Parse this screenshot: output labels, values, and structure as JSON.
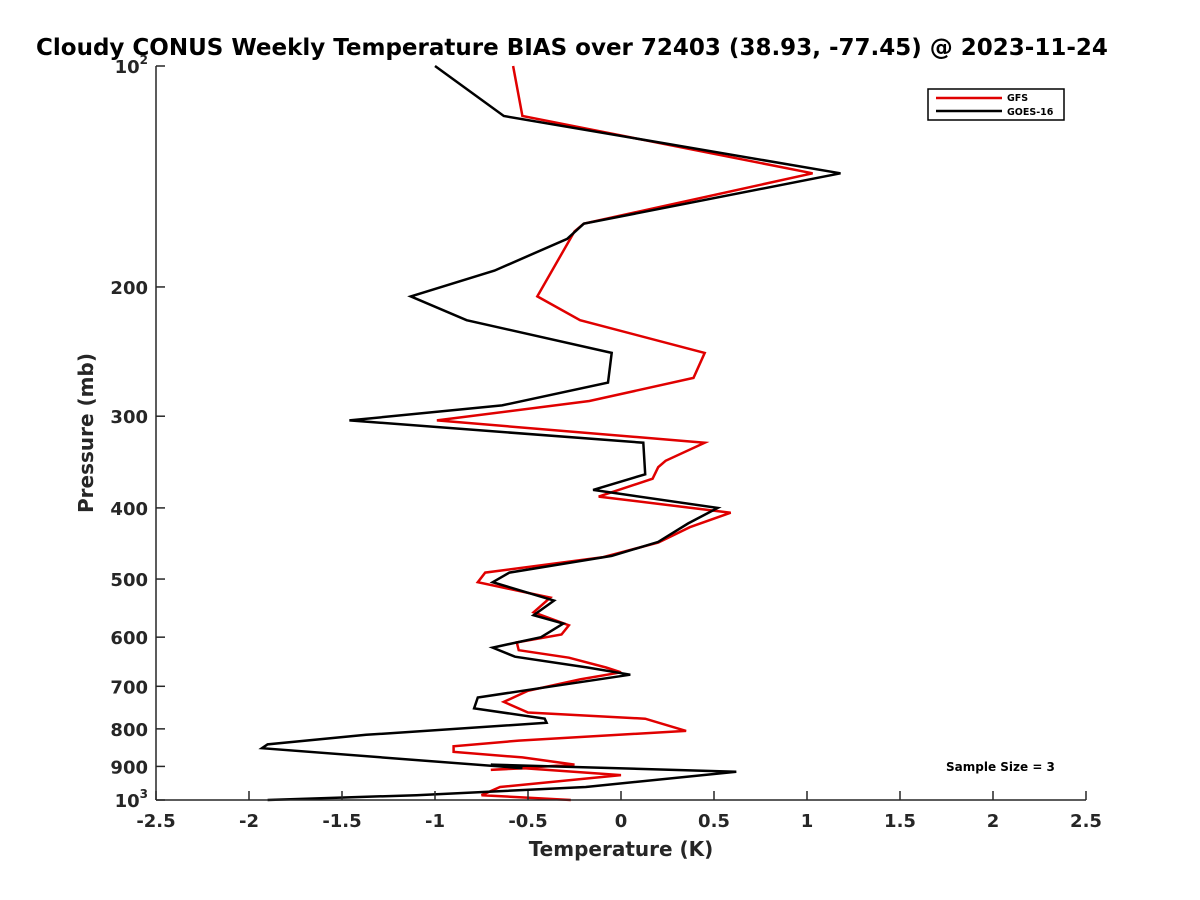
{
  "chart_data": {
    "type": "line",
    "title": "Cloudy CONUS Weekly Temperature BIAS over 72403 (38.93, -77.45) @ 2023-11-24",
    "xlabel": "Temperature (K)",
    "ylabel": "Pressure (mb)",
    "xlim": [
      -2.5,
      2.5
    ],
    "ylim": [
      100,
      1000
    ],
    "y_scale": "log",
    "y_reversed": true,
    "x_ticks": [
      {
        "value": -2.5,
        "label": "-2.5"
      },
      {
        "value": -2,
        "label": "-2"
      },
      {
        "value": -1.5,
        "label": "-1.5"
      },
      {
        "value": -1,
        "label": "-1"
      },
      {
        "value": -0.5,
        "label": "-0.5"
      },
      {
        "value": 0,
        "label": "0"
      },
      {
        "value": 0.5,
        "label": "0.5"
      },
      {
        "value": 1,
        "label": "1"
      },
      {
        "value": 1.5,
        "label": "1.5"
      },
      {
        "value": 2,
        "label": "2"
      },
      {
        "value": 2.5,
        "label": "2.5"
      }
    ],
    "y_ticks": [
      {
        "value": 100,
        "base": "10",
        "exp": "2"
      },
      {
        "value": 200,
        "label": "200"
      },
      {
        "value": 300,
        "label": "300"
      },
      {
        "value": 400,
        "label": "400"
      },
      {
        "value": 500,
        "label": "500"
      },
      {
        "value": 600,
        "label": "600"
      },
      {
        "value": 700,
        "label": "700"
      },
      {
        "value": 800,
        "label": "800"
      },
      {
        "value": 900,
        "label": "900"
      },
      {
        "value": 1000,
        "base": "10",
        "exp": "3"
      }
    ],
    "grid": false,
    "legend_position": "top-right",
    "annotation": "Sample Size = 3",
    "series": [
      {
        "name": "GFS",
        "color": "#e00000",
        "points": [
          [
            -0.58,
            100
          ],
          [
            -0.53,
            117
          ],
          [
            1.03,
            140
          ],
          [
            -0.2,
            164
          ],
          [
            -0.25,
            168
          ],
          [
            -0.45,
            206
          ],
          [
            -0.22,
            222
          ],
          [
            0.45,
            246
          ],
          [
            0.39,
            266
          ],
          [
            -0.17,
            286
          ],
          [
            -0.99,
            304
          ],
          [
            0.45,
            326
          ],
          [
            0.24,
            345
          ],
          [
            0.2,
            352
          ],
          [
            0.17,
            365
          ],
          [
            -0.12,
            386
          ],
          [
            0.59,
            406
          ],
          [
            0.37,
            425
          ],
          [
            0.2,
            446
          ],
          [
            -0.1,
            467
          ],
          [
            -0.73,
            490
          ],
          [
            -0.77,
            505
          ],
          [
            -0.38,
            530
          ],
          [
            -0.47,
            555
          ],
          [
            -0.28,
            578
          ],
          [
            -0.32,
            595
          ],
          [
            -0.56,
            610
          ],
          [
            -0.55,
            625
          ],
          [
            -0.28,
            640
          ],
          [
            -0.08,
            660
          ],
          [
            0,
            670
          ],
          [
            -0.22,
            685
          ],
          [
            -0.5,
            710
          ],
          [
            -0.63,
            735
          ],
          [
            -0.5,
            760
          ],
          [
            0.13,
            775
          ],
          [
            0.35,
            805
          ],
          [
            -0.55,
            830
          ],
          [
            -0.9,
            845
          ],
          [
            -0.9,
            860
          ],
          [
            -0.53,
            875
          ],
          [
            -0.25,
            895
          ],
          [
            -0.7,
            910
          ],
          [
            -0.52,
            905
          ],
          [
            0,
            925
          ],
          [
            -0.65,
            960
          ],
          [
            -0.75,
            985
          ],
          [
            -0.27,
            1000
          ]
        ]
      },
      {
        "name": "GOES-16",
        "color": "#000000",
        "points": [
          [
            -1,
            100
          ],
          [
            -0.63,
            117
          ],
          [
            1.18,
            140
          ],
          [
            -0.2,
            164
          ],
          [
            -0.29,
            172
          ],
          [
            -0.68,
            190
          ],
          [
            -1.13,
            206
          ],
          [
            -0.83,
            222
          ],
          [
            -0.05,
            246
          ],
          [
            -0.07,
            270
          ],
          [
            -0.64,
            290
          ],
          [
            -1.46,
            304
          ],
          [
            0.12,
            326
          ],
          [
            0.13,
            360
          ],
          [
            -0.15,
            378
          ],
          [
            0.52,
            400
          ],
          [
            0.36,
            420
          ],
          [
            0.2,
            445
          ],
          [
            -0.05,
            465
          ],
          [
            -0.6,
            490
          ],
          [
            -0.69,
            505
          ],
          [
            -0.36,
            535
          ],
          [
            -0.47,
            560
          ],
          [
            -0.31,
            575
          ],
          [
            -0.43,
            600
          ],
          [
            -0.69,
            620
          ],
          [
            -0.57,
            638
          ],
          [
            -0.18,
            660
          ],
          [
            0.05,
            675
          ],
          [
            -0.37,
            700
          ],
          [
            -0.77,
            725
          ],
          [
            -0.79,
            750
          ],
          [
            -0.41,
            775
          ],
          [
            -0.4,
            785
          ],
          [
            -1.37,
            815
          ],
          [
            -1.9,
            840
          ],
          [
            -1.93,
            850
          ],
          [
            -0.53,
            905
          ],
          [
            -0.7,
            895
          ],
          [
            0.62,
            915
          ],
          [
            -0.19,
            960
          ],
          [
            -1.1,
            985
          ],
          [
            -1.9,
            1000
          ]
        ]
      }
    ]
  }
}
